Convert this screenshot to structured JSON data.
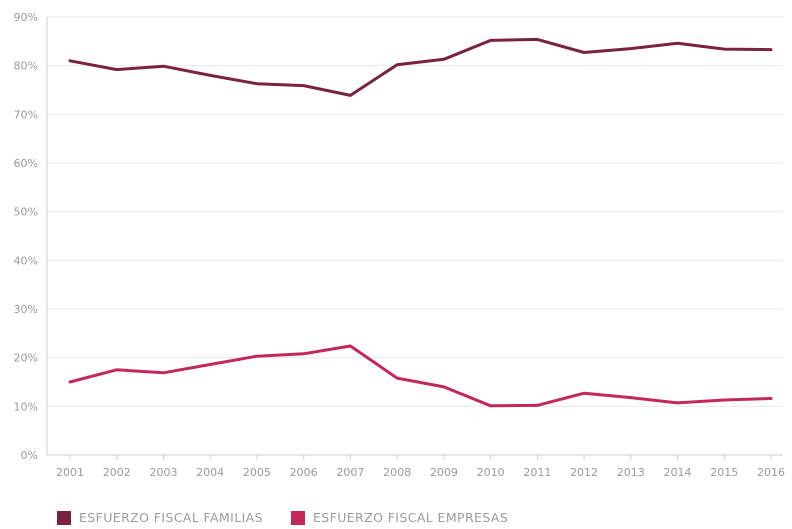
{
  "chart_data": {
    "type": "line",
    "title": "",
    "xlabel": "",
    "ylabel": "",
    "categories": [
      "2001",
      "2002",
      "2003",
      "2004",
      "2005",
      "2006",
      "2007",
      "2008",
      "2009",
      "2010",
      "2011",
      "2012",
      "2013",
      "2014",
      "2015",
      "2016"
    ],
    "ylim": [
      0,
      90
    ],
    "yticks": [
      0,
      10,
      20,
      30,
      40,
      50,
      60,
      70,
      80,
      90
    ],
    "ytick_labels": [
      "0%",
      "10%",
      "20%",
      "30%",
      "40%",
      "50%",
      "60%",
      "70%",
      "80%",
      "90%"
    ],
    "grid": "horizontal",
    "legend_position": "bottom-left",
    "series": [
      {
        "name": "ESFUERZO FISCAL FAMILIAS",
        "color": "#7b2142",
        "values": [
          81,
          79.2,
          79.9,
          78,
          76.3,
          75.9,
          73.9,
          80.2,
          81.3,
          85.2,
          85.4,
          82.7,
          83.5,
          84.6,
          83.4,
          83.3
        ]
      },
      {
        "name": "ESFUERZO FISCAL EMPRESAS",
        "color": "#c4285a",
        "values": [
          15,
          17.5,
          16.9,
          18.6,
          20.3,
          20.8,
          22.4,
          15.8,
          14,
          10.1,
          10.2,
          12.7,
          11.8,
          10.7,
          11.3,
          11.6
        ]
      }
    ]
  }
}
